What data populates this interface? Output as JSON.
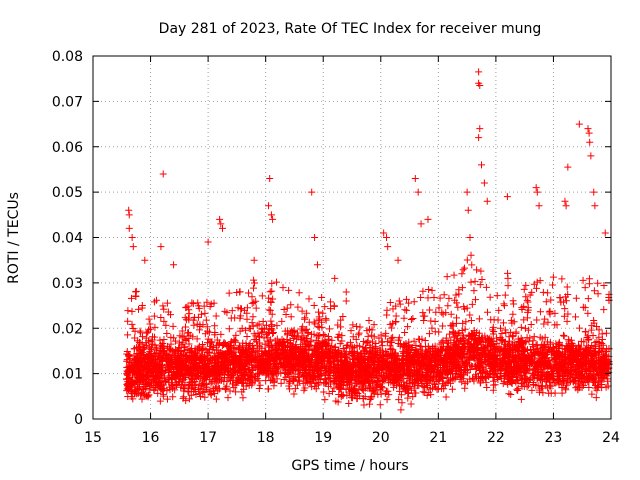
{
  "chart_data": {
    "type": "scatter",
    "title": "Day 281 of 2023, Rate Of TEC Index for receiver mung",
    "xlabel": "GPS time / hours",
    "ylabel": "ROTI / TECUs",
    "xlim": [
      15,
      24
    ],
    "ylim": [
      0,
      0.08
    ],
    "x_ticks": [
      15,
      16,
      17,
      18,
      19,
      20,
      21,
      22,
      23,
      24
    ],
    "x_tick_labels": [
      "15",
      "16",
      "17",
      "18",
      "19",
      "20",
      "21",
      "22",
      "23",
      "24"
    ],
    "y_ticks": [
      0,
      0.01,
      0.02,
      0.03,
      0.04,
      0.05,
      0.06,
      0.07,
      0.08
    ],
    "y_tick_labels": [
      "0",
      "0.01",
      "0.02",
      "0.03",
      "0.04",
      "0.05",
      "0.06",
      "0.07",
      "0.08"
    ],
    "grid": true,
    "marker": "+",
    "color": "#ff0000",
    "series": [
      {
        "name": "ROTI",
        "x_start": 15.58,
        "x_end": 23.97,
        "baseline_profile": {
          "x": [
            15.6,
            16.0,
            16.5,
            17.0,
            17.5,
            18.0,
            18.5,
            19.0,
            19.5,
            20.0,
            20.5,
            21.0,
            21.5,
            22.0,
            22.5,
            23.0,
            23.5,
            23.97
          ],
          "median": [
            0.01,
            0.011,
            0.011,
            0.011,
            0.012,
            0.013,
            0.013,
            0.012,
            0.01,
            0.011,
            0.011,
            0.012,
            0.014,
            0.013,
            0.012,
            0.012,
            0.012,
            0.012
          ],
          "upper": [
            0.025,
            0.024,
            0.022,
            0.024,
            0.026,
            0.028,
            0.025,
            0.026,
            0.019,
            0.022,
            0.025,
            0.026,
            0.032,
            0.03,
            0.026,
            0.028,
            0.027,
            0.028
          ]
        },
        "notable_points": [
          {
            "x": 15.62,
            "y": 0.046
          },
          {
            "x": 15.63,
            "y": 0.045
          },
          {
            "x": 15.63,
            "y": 0.042
          },
          {
            "x": 15.68,
            "y": 0.04
          },
          {
            "x": 15.7,
            "y": 0.038
          },
          {
            "x": 15.9,
            "y": 0.035
          },
          {
            "x": 16.18,
            "y": 0.038
          },
          {
            "x": 16.22,
            "y": 0.054
          },
          {
            "x": 16.4,
            "y": 0.034
          },
          {
            "x": 17.0,
            "y": 0.039
          },
          {
            "x": 17.2,
            "y": 0.044
          },
          {
            "x": 17.22,
            "y": 0.043
          },
          {
            "x": 17.25,
            "y": 0.042
          },
          {
            "x": 17.8,
            "y": 0.035
          },
          {
            "x": 18.05,
            "y": 0.047
          },
          {
            "x": 18.07,
            "y": 0.053
          },
          {
            "x": 18.1,
            "y": 0.045
          },
          {
            "x": 18.12,
            "y": 0.044
          },
          {
            "x": 18.8,
            "y": 0.05
          },
          {
            "x": 18.85,
            "y": 0.04
          },
          {
            "x": 18.9,
            "y": 0.034
          },
          {
            "x": 19.2,
            "y": 0.031
          },
          {
            "x": 19.4,
            "y": 0.028
          },
          {
            "x": 19.4,
            "y": 0.026
          },
          {
            "x": 20.05,
            "y": 0.041
          },
          {
            "x": 20.1,
            "y": 0.04
          },
          {
            "x": 20.12,
            "y": 0.038
          },
          {
            "x": 20.3,
            "y": 0.035
          },
          {
            "x": 20.35,
            "y": 0.002
          },
          {
            "x": 20.6,
            "y": 0.053
          },
          {
            "x": 20.65,
            "y": 0.05
          },
          {
            "x": 20.7,
            "y": 0.043
          },
          {
            "x": 20.82,
            "y": 0.044
          },
          {
            "x": 21.5,
            "y": 0.05
          },
          {
            "x": 21.52,
            "y": 0.046
          },
          {
            "x": 21.55,
            "y": 0.04
          },
          {
            "x": 21.7,
            "y": 0.0765
          },
          {
            "x": 21.7,
            "y": 0.074
          },
          {
            "x": 21.72,
            "y": 0.0735
          },
          {
            "x": 21.72,
            "y": 0.064
          },
          {
            "x": 21.7,
            "y": 0.062
          },
          {
            "x": 21.75,
            "y": 0.056
          },
          {
            "x": 21.8,
            "y": 0.052
          },
          {
            "x": 21.85,
            "y": 0.048
          },
          {
            "x": 22.2,
            "y": 0.049
          },
          {
            "x": 22.7,
            "y": 0.051
          },
          {
            "x": 22.72,
            "y": 0.05
          },
          {
            "x": 22.75,
            "y": 0.047
          },
          {
            "x": 23.2,
            "y": 0.048
          },
          {
            "x": 23.22,
            "y": 0.047
          },
          {
            "x": 23.25,
            "y": 0.0555
          },
          {
            "x": 23.6,
            "y": 0.064
          },
          {
            "x": 23.62,
            "y": 0.063
          },
          {
            "x": 23.63,
            "y": 0.061
          },
          {
            "x": 23.65,
            "y": 0.058
          },
          {
            "x": 23.7,
            "y": 0.05
          },
          {
            "x": 23.72,
            "y": 0.047
          },
          {
            "x": 23.45,
            "y": 0.065
          },
          {
            "x": 23.9,
            "y": 0.041
          }
        ]
      }
    ]
  }
}
